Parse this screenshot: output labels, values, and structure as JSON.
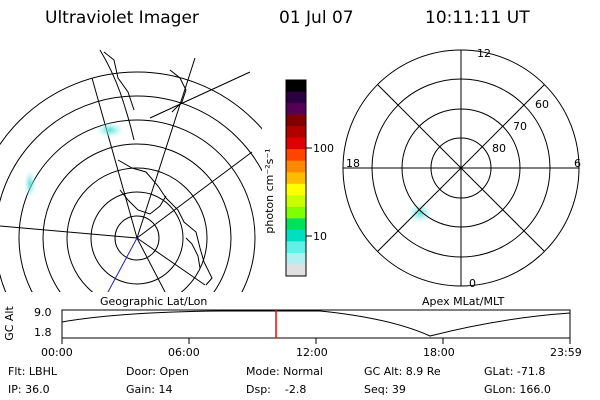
{
  "header": {
    "title": "Ultraviolet Imager",
    "date": "01 Jul 07",
    "time": "10:11:11 UT"
  },
  "colorbar": {
    "unit_label": "photon cm⁻²s⁻¹",
    "ticks": [
      "100",
      "10"
    ],
    "colors": [
      "#000000",
      "#2a0040",
      "#550055",
      "#800000",
      "#b00000",
      "#e00000",
      "#ff4400",
      "#ff8800",
      "#ffbb00",
      "#ffff00",
      "#c8ff00",
      "#80ff00",
      "#00e060",
      "#00e0c0",
      "#60f0e8",
      "#b0f0f0",
      "#e0e0e0"
    ]
  },
  "left_map": {
    "label": "Geographic Lat/Lon"
  },
  "right_map": {
    "label": "Apex MLat/MLT",
    "mlt_labels": {
      "top": "12",
      "left": "18",
      "right": "6",
      "bottom": "0"
    },
    "lat_labels": [
      "60",
      "70",
      "80"
    ]
  },
  "timeline": {
    "axis_title": "GC Alt",
    "y_ticks": [
      "9.0",
      "1.8"
    ],
    "x_ticks": [
      "00:00",
      "06:00",
      "12:00",
      "18:00",
      "23:59"
    ],
    "marker_color": "#ff0000"
  },
  "info": {
    "filter": "Flt: LBHL",
    "ip": "IP: 36.0",
    "door": "Door: Open",
    "gain": "Gain: 14",
    "mode": "Mode: Normal",
    "dsp": "Dsp:    -2.8",
    "gc_alt": "GC Alt: 8.9 Re",
    "seq": "Seq: 39",
    "glat": "GLat: -71.8",
    "glon": "GLon: 166.0"
  }
}
